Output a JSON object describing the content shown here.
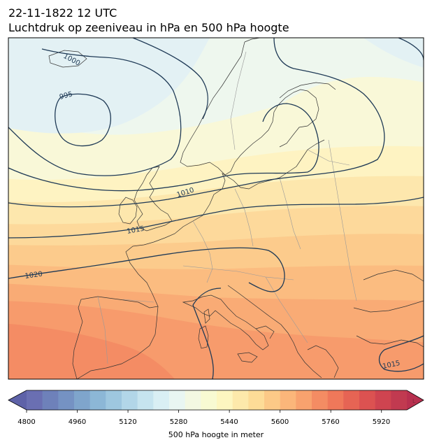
{
  "header": {
    "title_line1": "22-11-1822 12 UTC",
    "title_line2": "Luchtdruk op zeeniveau in hPa en 500 hPa hoogte"
  },
  "map": {
    "region": "Europe",
    "isobar_color": "#1f3a56",
    "coastline_color": "#333333",
    "border_color": "#999999",
    "isobar_labels": [
      "1000",
      "995",
      "1010",
      "1015",
      "1020",
      "1015"
    ],
    "extend_arrows_label": "L"
  },
  "colorbar": {
    "label": "500 hPa hoogte in meter",
    "ticks": [
      "4800",
      "4960",
      "5120",
      "5280",
      "5440",
      "5600",
      "5760",
      "5920"
    ],
    "range": [
      4800,
      6000
    ],
    "colors": [
      "#6a6fb2",
      "#6e81ba",
      "#7592c3",
      "#7fa5cc",
      "#8cb7d6",
      "#9ec7df",
      "#b2d6e8",
      "#c6e4ef",
      "#d9eff4",
      "#e9f6f2",
      "#f3f8e2",
      "#f8fad2",
      "#fdf6c0",
      "#fde9ab",
      "#fddc97",
      "#fcc987",
      "#fbb67a",
      "#f8a26e",
      "#f48c63",
      "#ef785a",
      "#e66454",
      "#dc5251",
      "#cf4450",
      "#c13a50"
    ]
  }
}
